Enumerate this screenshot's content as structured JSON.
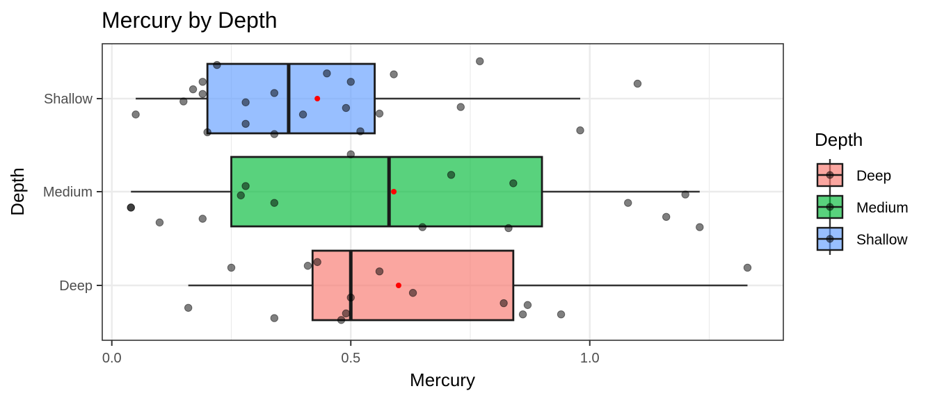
{
  "chart_data": {
    "type": "boxplot",
    "title": "Mercury by Depth",
    "xlabel": "Mercury",
    "ylabel": "Depth",
    "xlim": [
      -0.02,
      1.405
    ],
    "xticks": [
      0.0,
      0.5,
      1.0
    ],
    "xtick_labels": [
      "0.0",
      "0.5",
      "1.0"
    ],
    "categories": [
      "Deep",
      "Medium",
      "Shallow"
    ],
    "grid": true,
    "legend": {
      "title": "Depth",
      "position": "right",
      "items": [
        "Deep",
        "Medium",
        "Shallow"
      ]
    },
    "colors": {
      "Deep": "#f8766d",
      "Medium": "#00ba38",
      "Shallow": "#619cff",
      "mean": "#ff0000",
      "points": "#4d4d4d"
    },
    "boxes": [
      {
        "category": "Deep",
        "whisker_low": 0.16,
        "q1": 0.42,
        "median": 0.5,
        "q3": 0.84,
        "whisker_high": 1.33,
        "mean": 0.6
      },
      {
        "category": "Medium",
        "whisker_low": 0.04,
        "q1": 0.25,
        "median": 0.58,
        "q3": 0.9,
        "whisker_high": 1.23,
        "mean": 0.59
      },
      {
        "category": "Shallow",
        "whisker_low": 0.05,
        "q1": 0.2,
        "median": 0.37,
        "q3": 0.55,
        "whisker_high": 0.98,
        "mean": 0.43
      }
    ],
    "points": [
      {
        "category": "Deep",
        "x": 0.16,
        "jitter": -0.24
      },
      {
        "category": "Deep",
        "x": 0.25,
        "jitter": 0.19
      },
      {
        "category": "Deep",
        "x": 0.34,
        "jitter": -0.35
      },
      {
        "category": "Deep",
        "x": 0.41,
        "jitter": 0.21
      },
      {
        "category": "Deep",
        "x": 0.43,
        "jitter": 0.25
      },
      {
        "category": "Deep",
        "x": 0.48,
        "jitter": -0.37
      },
      {
        "category": "Deep",
        "x": 0.49,
        "jitter": -0.3
      },
      {
        "category": "Deep",
        "x": 0.5,
        "jitter": -0.13
      },
      {
        "category": "Deep",
        "x": 0.56,
        "jitter": 0.15
      },
      {
        "category": "Deep",
        "x": 0.63,
        "jitter": -0.08
      },
      {
        "category": "Deep",
        "x": 0.82,
        "jitter": -0.19
      },
      {
        "category": "Deep",
        "x": 0.86,
        "jitter": -0.31
      },
      {
        "category": "Deep",
        "x": 0.87,
        "jitter": -0.21
      },
      {
        "category": "Deep",
        "x": 0.94,
        "jitter": -0.31
      },
      {
        "category": "Deep",
        "x": 1.33,
        "jitter": 0.19
      },
      {
        "category": "Medium",
        "x": 0.04,
        "jitter": -0.17
      },
      {
        "category": "Medium",
        "x": 0.04,
        "jitter": -0.17
      },
      {
        "category": "Medium",
        "x": 0.1,
        "jitter": -0.33
      },
      {
        "category": "Medium",
        "x": 0.19,
        "jitter": -0.29
      },
      {
        "category": "Medium",
        "x": 0.27,
        "jitter": -0.04
      },
      {
        "category": "Medium",
        "x": 0.28,
        "jitter": 0.06
      },
      {
        "category": "Medium",
        "x": 0.34,
        "jitter": -0.12
      },
      {
        "category": "Medium",
        "x": 0.5,
        "jitter": 0.4
      },
      {
        "category": "Medium",
        "x": 0.65,
        "jitter": -0.38
      },
      {
        "category": "Medium",
        "x": 0.71,
        "jitter": 0.18
      },
      {
        "category": "Medium",
        "x": 0.83,
        "jitter": -0.39
      },
      {
        "category": "Medium",
        "x": 0.84,
        "jitter": 0.09
      },
      {
        "category": "Medium",
        "x": 1.08,
        "jitter": -0.12
      },
      {
        "category": "Medium",
        "x": 1.16,
        "jitter": -0.27
      },
      {
        "category": "Medium",
        "x": 1.2,
        "jitter": -0.03
      },
      {
        "category": "Medium",
        "x": 1.23,
        "jitter": -0.38
      },
      {
        "category": "Shallow",
        "x": 0.05,
        "jitter": -0.17
      },
      {
        "category": "Shallow",
        "x": 0.15,
        "jitter": -0.03
      },
      {
        "category": "Shallow",
        "x": 0.17,
        "jitter": 0.1
      },
      {
        "category": "Shallow",
        "x": 0.19,
        "jitter": 0.18
      },
      {
        "category": "Shallow",
        "x": 0.19,
        "jitter": 0.05
      },
      {
        "category": "Shallow",
        "x": 0.2,
        "jitter": -0.36
      },
      {
        "category": "Shallow",
        "x": 0.22,
        "jitter": 0.36
      },
      {
        "category": "Shallow",
        "x": 0.28,
        "jitter": -0.04
      },
      {
        "category": "Shallow",
        "x": 0.28,
        "jitter": -0.27
      },
      {
        "category": "Shallow",
        "x": 0.34,
        "jitter": 0.06
      },
      {
        "category": "Shallow",
        "x": 0.34,
        "jitter": -0.38
      },
      {
        "category": "Shallow",
        "x": 0.4,
        "jitter": -0.17
      },
      {
        "category": "Shallow",
        "x": 0.45,
        "jitter": 0.27
      },
      {
        "category": "Shallow",
        "x": 0.49,
        "jitter": -0.1
      },
      {
        "category": "Shallow",
        "x": 0.5,
        "jitter": 0.18
      },
      {
        "category": "Shallow",
        "x": 0.52,
        "jitter": -0.35
      },
      {
        "category": "Shallow",
        "x": 0.56,
        "jitter": -0.16
      },
      {
        "category": "Shallow",
        "x": 0.59,
        "jitter": 0.26
      },
      {
        "category": "Shallow",
        "x": 0.73,
        "jitter": -0.09
      },
      {
        "category": "Shallow",
        "x": 0.77,
        "jitter": 0.4
      },
      {
        "category": "Shallow",
        "x": 0.98,
        "jitter": -0.34
      },
      {
        "category": "Shallow",
        "x": 1.1,
        "jitter": 0.16
      }
    ]
  }
}
